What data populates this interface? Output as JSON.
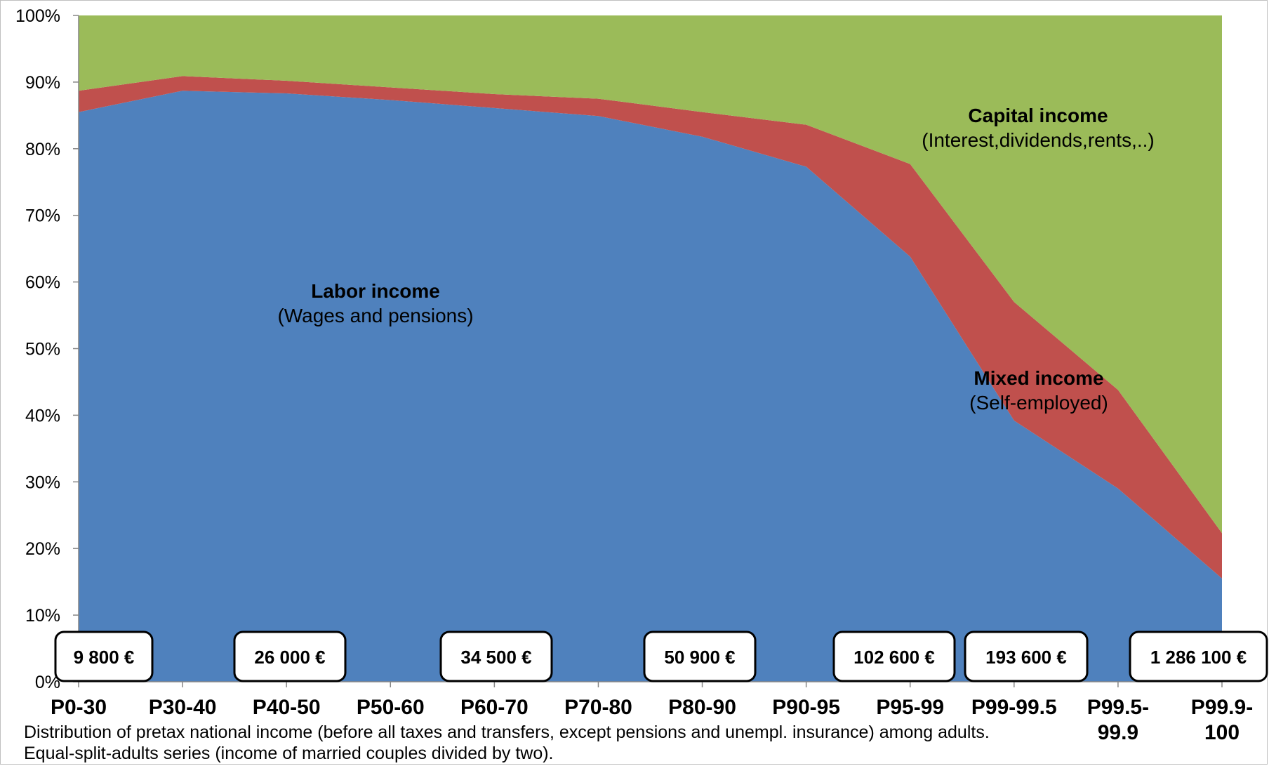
{
  "chart_data": {
    "type": "area",
    "stacked": true,
    "percent": true,
    "categories": [
      "P0-30",
      "P30-40",
      "P40-50",
      "P50-60",
      "P60-70",
      "P70-80",
      "P80-90",
      "P90-95",
      "P95-99",
      "P99-99.5",
      "P99.5-99.9",
      "P99.9-100"
    ],
    "category_labels": [
      [
        "P0-30"
      ],
      [
        "P30-40"
      ],
      [
        "P40-50"
      ],
      [
        "P50-60"
      ],
      [
        "P60-70"
      ],
      [
        "P70-80"
      ],
      [
        "P80-90"
      ],
      [
        "P90-95"
      ],
      [
        "P95-99"
      ],
      [
        "P99-99.5"
      ],
      [
        "P99.5-",
        "99.9"
      ],
      [
        "P99.9-",
        "100"
      ]
    ],
    "series": [
      {
        "name": "Labor income",
        "color": "#4f81bd",
        "values": [
          85.5,
          88.7,
          88.3,
          87.3,
          86.1,
          84.9,
          81.8,
          77.3,
          63.8,
          39.2,
          29.0,
          15.5
        ]
      },
      {
        "name": "Mixed income",
        "color": "#c0504d",
        "values": [
          3.2,
          2.2,
          1.9,
          1.9,
          2.1,
          2.6,
          3.7,
          6.3,
          13.9,
          17.8,
          14.8,
          6.8
        ]
      },
      {
        "name": "Capital income",
        "color": "#9bbb59",
        "values": [
          11.3,
          9.1,
          9.8,
          10.8,
          11.8,
          12.5,
          14.5,
          16.4,
          22.3,
          43.0,
          56.2,
          77.7
        ]
      }
    ],
    "ylim": [
      0,
      100
    ],
    "yticks": [
      "0%",
      "10%",
      "20%",
      "30%",
      "40%",
      "50%",
      "60%",
      "70%",
      "80%",
      "90%",
      "100%"
    ],
    "annotations": {
      "labor": {
        "title": "Labor income",
        "subtitle": "(Wages and pensions)"
      },
      "mixed": {
        "title": "Mixed income",
        "subtitle": "(Self-employed)"
      },
      "capital": {
        "title": "Capital income",
        "subtitle": "(Interest,dividends,rents,..)"
      }
    },
    "income_boxes": [
      {
        "category": "P0-30",
        "label": "9 800 €"
      },
      {
        "category": "P40-50",
        "label": "26 000 €"
      },
      {
        "category": "P60-70",
        "label": "34 500 €"
      },
      {
        "category": "P80-90",
        "label": "50 900 €"
      },
      {
        "category": "P95-99",
        "label": "102 600 €"
      },
      {
        "category": "P99-99.5",
        "label": "193 600 €"
      },
      {
        "category": "P99.9-100",
        "label": "1 286 100 €"
      }
    ],
    "grid": false,
    "legend": "none"
  },
  "notes": {
    "line1": "Distribution of pretax national income (before all taxes and transfers, except pensions and unempl. insurance) among adults.",
    "line2": "Equal-split-adults series (income of married couples divided by two)."
  }
}
